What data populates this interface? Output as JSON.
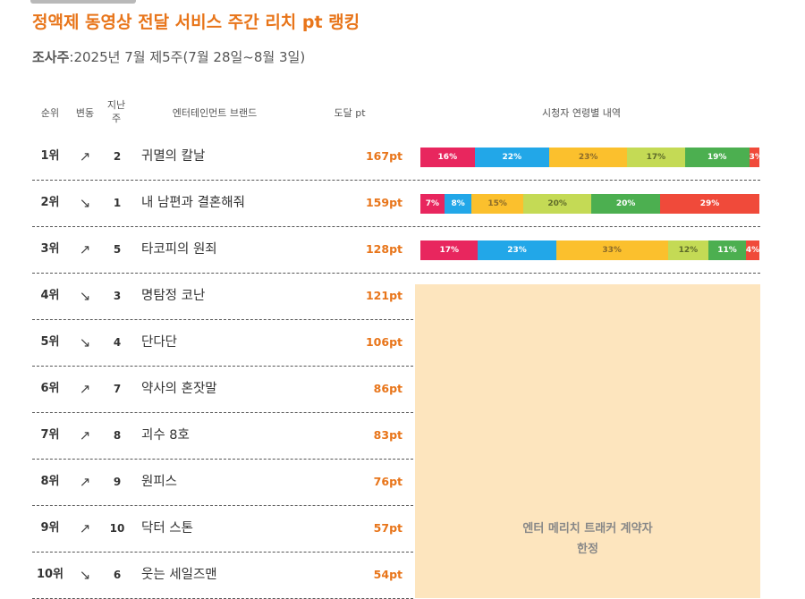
{
  "title": "정액제 동영상 전달 서비스 주간 리치 pt 랭킹",
  "survey_label": "조사주",
  "survey_value": ":2025년 7월 제5주(7월 28일~8월 3일)",
  "headers": {
    "rank": "순위",
    "change": "변동",
    "prev_line1": "지난",
    "prev_line2": "주",
    "brand": "엔터테인먼트 브랜드",
    "points": "도달 pt",
    "breakdown": "시청자 연령별 내역"
  },
  "rows": [
    {
      "rank": "1위",
      "change": "↗",
      "prev": "2",
      "brand": "귀멸의 칼날",
      "points": "167pt"
    },
    {
      "rank": "2위",
      "change": "↘",
      "prev": "1",
      "brand": "내 남편과 결혼해줘",
      "points": "159pt"
    },
    {
      "rank": "3위",
      "change": "↗",
      "prev": "5",
      "brand": "타코피의 원죄",
      "points": "128pt"
    },
    {
      "rank": "4위",
      "change": "↘",
      "prev": "3",
      "brand": "명탐정 코난",
      "points": "121pt"
    },
    {
      "rank": "5위",
      "change": "↘",
      "prev": "4",
      "brand": "단다단",
      "points": "106pt"
    },
    {
      "rank": "6위",
      "change": "↗",
      "prev": "7",
      "brand": "약사의 혼잣말",
      "points": "86pt"
    },
    {
      "rank": "7위",
      "change": "↗",
      "prev": "8",
      "brand": "괴수 8호",
      "points": "83pt"
    },
    {
      "rank": "8위",
      "change": "↗",
      "prev": "9",
      "brand": "원피스",
      "points": "76pt"
    },
    {
      "rank": "9위",
      "change": "↗",
      "prev": "10",
      "brand": "닥터 스톤",
      "points": "57pt"
    },
    {
      "rank": "10위",
      "change": "↘",
      "prev": "6",
      "brand": "웃는 세일즈맨",
      "points": "54pt"
    }
  ],
  "notice": {
    "line1": "엔터 메리치 트래커 계약자",
    "line2": "한정"
  },
  "chart_data": {
    "type": "bar",
    "stacked": true,
    "orientation": "horizontal",
    "categories": [
      "귀멸의 칼날",
      "내 남편과 결혼해줘",
      "타코피의 원죄"
    ],
    "segment_colors": [
      "#e8265e",
      "#22a7e8",
      "#fbc02d",
      "#c4da55",
      "#4caf50",
      "#f04a3a"
    ],
    "series": [
      {
        "values": [
          16,
          7,
          17
        ]
      },
      {
        "values": [
          22,
          8,
          23
        ]
      },
      {
        "values": [
          23,
          15,
          33
        ]
      },
      {
        "values": [
          17,
          20,
          12
        ]
      },
      {
        "values": [
          19,
          20,
          11
        ]
      },
      {
        "values": [
          3,
          29,
          4
        ]
      }
    ],
    "label_suffix": "%"
  }
}
